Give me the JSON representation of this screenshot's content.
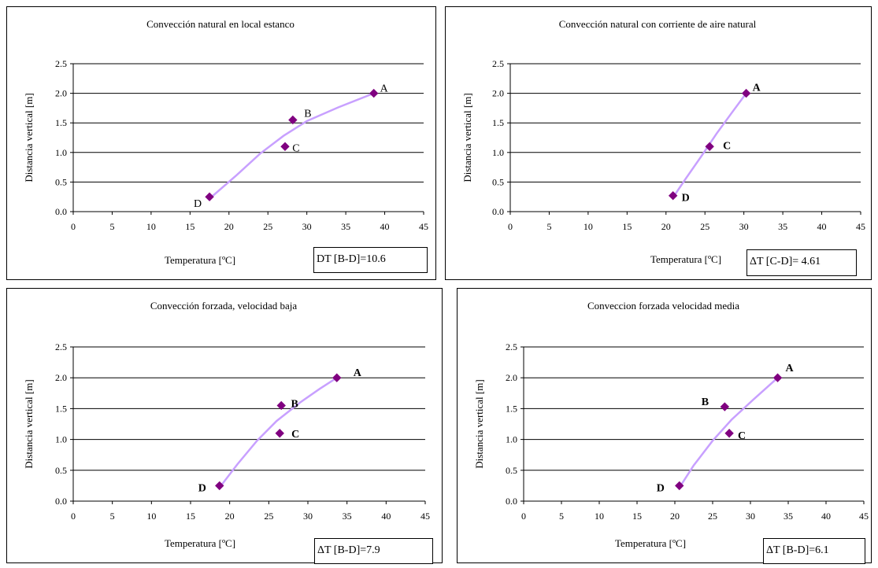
{
  "colors": {
    "marker": "#800080",
    "trend": "#c8a0ff",
    "grid": "#000000"
  },
  "chart_data": [
    {
      "type": "scatter",
      "title": "Convección natural en local estanco",
      "xlabel": "Temperatura [ºC]",
      "ylabel": "Distancia vertical [m]",
      "xlim": [
        0,
        45
      ],
      "ylim": [
        0,
        2.5
      ],
      "x_ticks": [
        "0",
        "5",
        "10",
        "15",
        "20",
        "25",
        "30",
        "35",
        "40",
        "45"
      ],
      "y_ticks": [
        "0.0",
        "0.5",
        "1.0",
        "1.5",
        "2.0",
        "2.5"
      ],
      "grid": "horizontal",
      "label_bold": false,
      "points": [
        {
          "label": "A",
          "x": 38.6,
          "y": 2.0
        },
        {
          "label": "B",
          "x": 28.2,
          "y": 1.55
        },
        {
          "label": "C",
          "x": 27.2,
          "y": 1.1
        },
        {
          "label": "D",
          "x": 17.5,
          "y": 0.25
        }
      ],
      "trendline": [
        [
          17.5,
          0.22
        ],
        [
          21,
          0.62
        ],
        [
          24,
          0.98
        ],
        [
          27,
          1.28
        ],
        [
          30,
          1.53
        ],
        [
          34,
          1.76
        ],
        [
          38.6,
          2.0
        ]
      ],
      "delta_text": "DT [B-D]=10.6"
    },
    {
      "type": "scatter",
      "title": "Convección natural con corriente de aire natural",
      "xlabel": "Temperatura [ºC]",
      "ylabel": "Distancia vertical [m]",
      "xlim": [
        0,
        45
      ],
      "ylim": [
        0,
        2.5
      ],
      "x_ticks": [
        "0",
        "5",
        "10",
        "15",
        "20",
        "25",
        "30",
        "35",
        "40",
        "45"
      ],
      "y_ticks": [
        "0.0",
        "0.5",
        "1.0",
        "1.5",
        "2.0",
        "2.5"
      ],
      "grid": "horizontal",
      "label_bold": true,
      "points": [
        {
          "label": "A",
          "x": 30.3,
          "y": 2.0
        },
        {
          "label": "C",
          "x": 25.6,
          "y": 1.1
        },
        {
          "label": "D",
          "x": 20.9,
          "y": 0.27
        }
      ],
      "trendline": [
        [
          20.9,
          0.24
        ],
        [
          22.5,
          0.55
        ],
        [
          24.5,
          0.93
        ],
        [
          26.5,
          1.32
        ],
        [
          28.5,
          1.68
        ],
        [
          30.3,
          2.0
        ]
      ],
      "delta_text": "ΔT [C-D]= 4.61"
    },
    {
      "type": "scatter",
      "title": "Convección forzada, velocidad baja",
      "xlabel": "Temperatura [ºC]",
      "ylabel": "Distancia vertical [m]",
      "xlim": [
        0,
        45
      ],
      "ylim": [
        0,
        2.5
      ],
      "x_ticks": [
        "0",
        "5",
        "10",
        "15",
        "20",
        "25",
        "30",
        "35",
        "40",
        "45"
      ],
      "y_ticks": [
        "0.0",
        "0.5",
        "1.0",
        "1.5",
        "2.0",
        "2.5"
      ],
      "grid": "horizontal",
      "label_bold": true,
      "points": [
        {
          "label": "A",
          "x": 33.7,
          "y": 2.0
        },
        {
          "label": "B",
          "x": 26.6,
          "y": 1.55
        },
        {
          "label": "C",
          "x": 26.4,
          "y": 1.1
        },
        {
          "label": "D",
          "x": 18.7,
          "y": 0.25
        }
      ],
      "trendline": [
        [
          18.7,
          0.22
        ],
        [
          21,
          0.6
        ],
        [
          23.5,
          0.98
        ],
        [
          26,
          1.3
        ],
        [
          29,
          1.6
        ],
        [
          31.5,
          1.82
        ],
        [
          33.7,
          2.0
        ]
      ],
      "delta_text": "ΔT [B-D]=7.9"
    },
    {
      "type": "scatter",
      "title": "Conveccion forzada velocidad media",
      "xlabel": "Temperatura [ºC]",
      "ylabel": "Distancia vertical [m]",
      "xlim": [
        0,
        45
      ],
      "ylim": [
        0,
        2.5
      ],
      "x_ticks": [
        "0",
        "5",
        "10",
        "15",
        "20",
        "25",
        "30",
        "35",
        "40",
        "45"
      ],
      "y_ticks": [
        "0.0",
        "0.5",
        "1.0",
        "1.5",
        "2.0",
        "2.5"
      ],
      "grid": "horizontal",
      "label_bold": true,
      "points": [
        {
          "label": "A",
          "x": 33.6,
          "y": 2.0
        },
        {
          "label": "B",
          "x": 26.6,
          "y": 1.53
        },
        {
          "label": "C",
          "x": 27.2,
          "y": 1.1
        },
        {
          "label": "D",
          "x": 20.6,
          "y": 0.25
        }
      ],
      "trendline": [
        [
          20.6,
          0.22
        ],
        [
          22.5,
          0.58
        ],
        [
          25,
          0.98
        ],
        [
          27.5,
          1.32
        ],
        [
          30.5,
          1.66
        ],
        [
          33.6,
          2.0
        ]
      ],
      "delta_text": "ΔT [B-D]=6.1"
    }
  ]
}
